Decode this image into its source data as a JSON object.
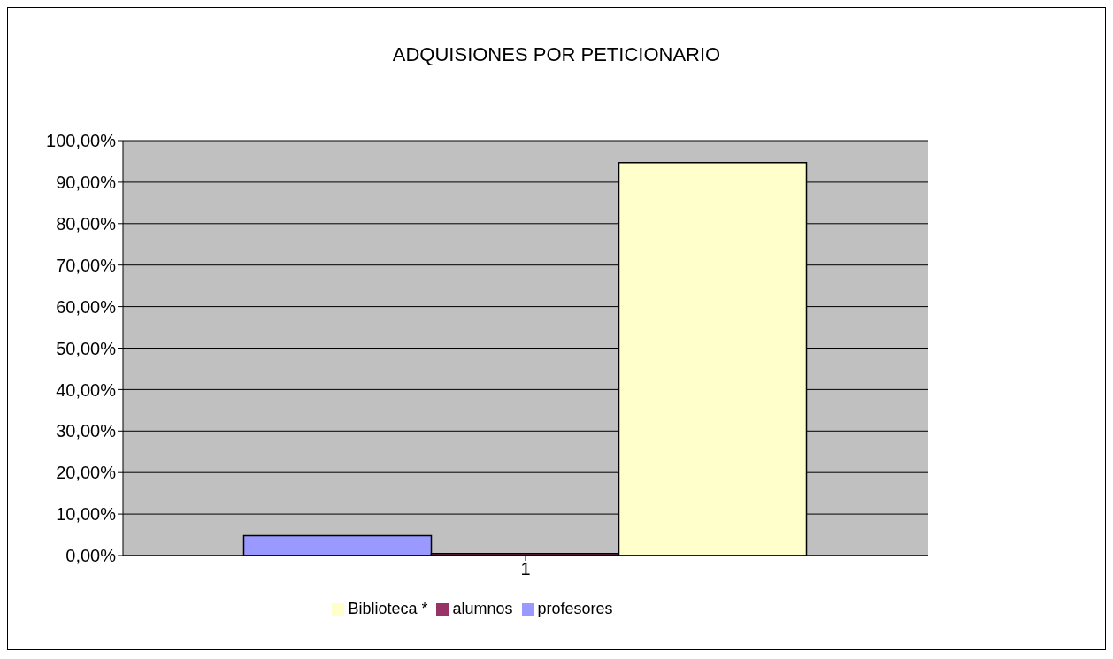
{
  "chart_data": {
    "type": "bar",
    "title": "ADQUISIONES POR PETICIONARIO",
    "categories": [
      "1"
    ],
    "series": [
      {
        "name": "profesores",
        "color": "#9999ff",
        "values": [
          4.8
        ]
      },
      {
        "name": "alumnos",
        "color": "#993366",
        "values": [
          0.5
        ]
      },
      {
        "name": "Biblioteca *",
        "color": "#ffffcc",
        "values": [
          94.7
        ]
      }
    ],
    "ylim": [
      0,
      100
    ],
    "yticks": [
      {
        "value": 0,
        "label": "0,00%"
      },
      {
        "value": 10,
        "label": "10,00%"
      },
      {
        "value": 20,
        "label": "20,00%"
      },
      {
        "value": 30,
        "label": "30,00%"
      },
      {
        "value": 40,
        "label": "40,00%"
      },
      {
        "value": 50,
        "label": "50,00%"
      },
      {
        "value": 60,
        "label": "60,00%"
      },
      {
        "value": 70,
        "label": "70,00%"
      },
      {
        "value": 80,
        "label": "80,00%"
      },
      {
        "value": 90,
        "label": "90,00%"
      },
      {
        "value": 100,
        "label": "100,00%"
      }
    ],
    "grid": "y",
    "legend": "bottom"
  }
}
